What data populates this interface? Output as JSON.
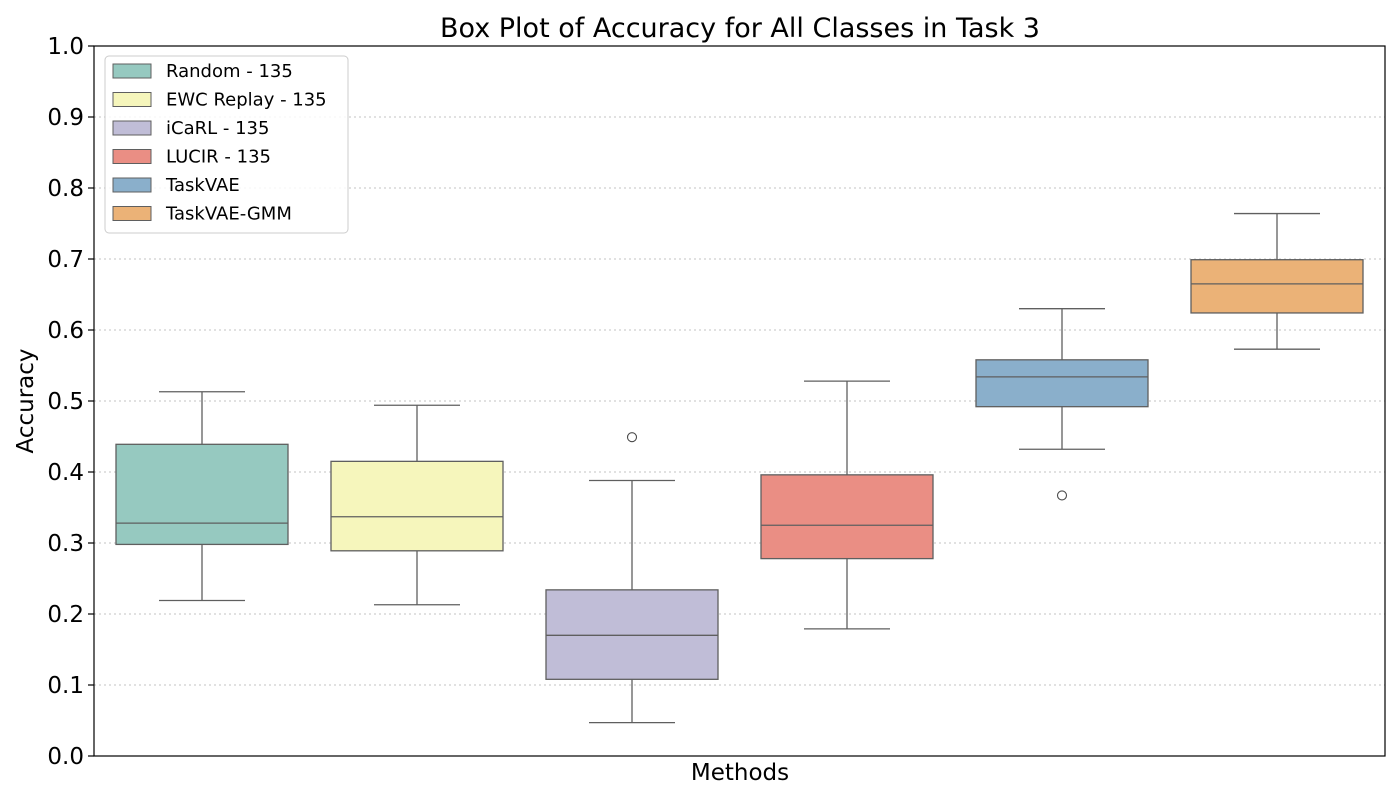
{
  "chart_data": {
    "type": "box",
    "title": "Box Plot of Accuracy for All Classes in Task 3",
    "xlabel": "Methods",
    "ylabel": "Accuracy",
    "ylim": [
      0.0,
      1.0
    ],
    "yticks": [
      "0.0",
      "0.1",
      "0.2",
      "0.3",
      "0.4",
      "0.5",
      "0.6",
      "0.7",
      "0.8",
      "0.9",
      "1.0"
    ],
    "grid": "horizontal-dotted",
    "legend_position": "top-left",
    "series": [
      {
        "name": "Random - 135",
        "color": "#96c9c0",
        "whisker_low": 0.219,
        "q1": 0.298,
        "median": 0.328,
        "q3": 0.439,
        "whisker_high": 0.513,
        "outliers": []
      },
      {
        "name": "EWC Replay - 135",
        "color": "#f6f6bc",
        "whisker_low": 0.213,
        "q1": 0.289,
        "median": 0.337,
        "q3": 0.415,
        "whisker_high": 0.494,
        "outliers": []
      },
      {
        "name": "iCaRL - 135",
        "color": "#c0bdd7",
        "whisker_low": 0.047,
        "q1": 0.108,
        "median": 0.17,
        "q3": 0.234,
        "whisker_high": 0.388,
        "outliers": [
          0.449
        ]
      },
      {
        "name": "LUCIR - 135",
        "color": "#ea8e84",
        "whisker_low": 0.179,
        "q1": 0.278,
        "median": 0.325,
        "q3": 0.396,
        "whisker_high": 0.528,
        "outliers": []
      },
      {
        "name": "TaskVAE",
        "color": "#8aafcb",
        "whisker_low": 0.432,
        "q1": 0.492,
        "median": 0.534,
        "q3": 0.558,
        "whisker_high": 0.63,
        "outliers": [
          0.367
        ]
      },
      {
        "name": "TaskVAE-GMM",
        "color": "#ebb277",
        "whisker_low": 0.573,
        "q1": 0.624,
        "median": 0.665,
        "q3": 0.699,
        "whisker_high": 0.764,
        "outliers": []
      }
    ]
  }
}
